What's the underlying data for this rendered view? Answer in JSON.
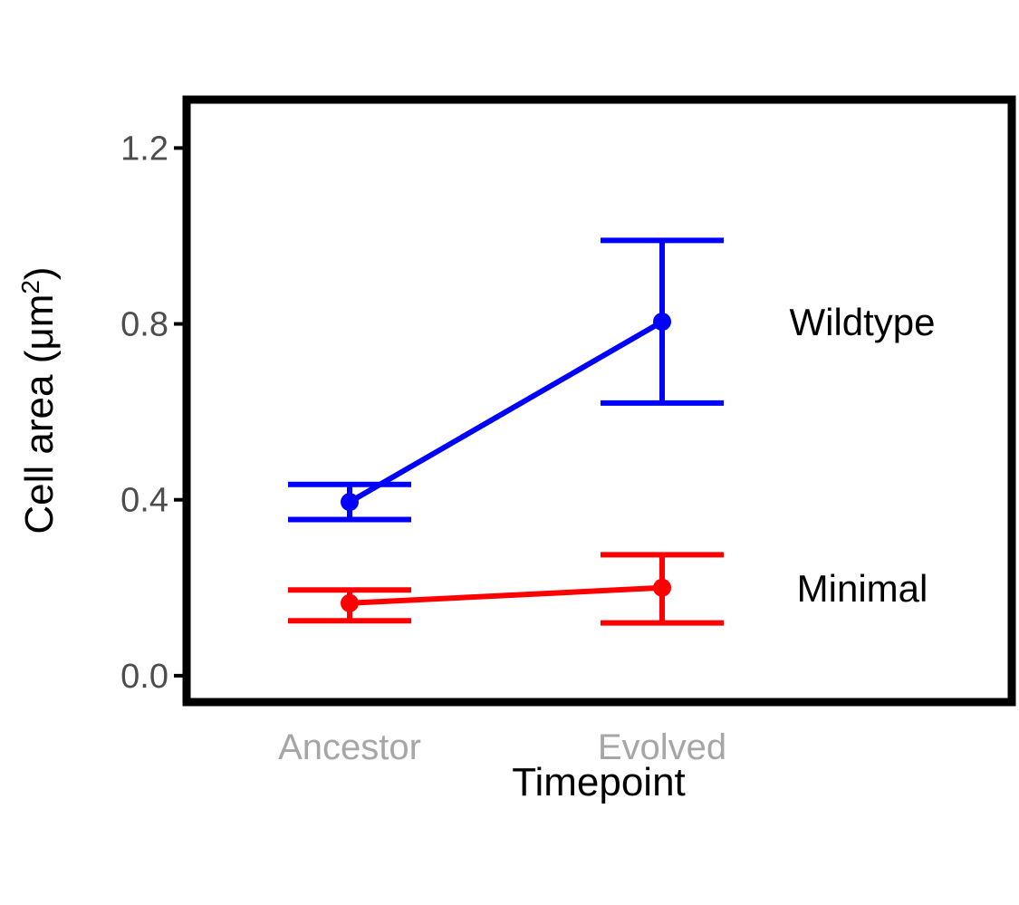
{
  "chart_data": {
    "type": "line",
    "title": "",
    "xlabel": "Timepoint",
    "ylabel_text": "Cell area (μm",
    "ylabel_sup": "2",
    "ylabel_close": ")",
    "categories": [
      "Ancestor",
      "Evolved"
    ],
    "ylim": [
      -0.06,
      1.31
    ],
    "yticks": [
      0.0,
      0.4,
      0.8,
      1.2
    ],
    "ytick_labels": [
      "0.0",
      "0.4",
      "0.8",
      "1.2"
    ],
    "grid": false,
    "legend": "none",
    "series": [
      {
        "name": "Wildtype",
        "color": "#0000ff",
        "values": [
          0.395,
          0.805
        ],
        "lower": [
          0.355,
          0.62
        ],
        "upper": [
          0.435,
          0.99
        ]
      },
      {
        "name": "Minimal",
        "color": "#ff0000",
        "values": [
          0.165,
          0.2
        ],
        "lower": [
          0.125,
          0.12
        ],
        "upper": [
          0.195,
          0.275
        ]
      }
    ]
  }
}
